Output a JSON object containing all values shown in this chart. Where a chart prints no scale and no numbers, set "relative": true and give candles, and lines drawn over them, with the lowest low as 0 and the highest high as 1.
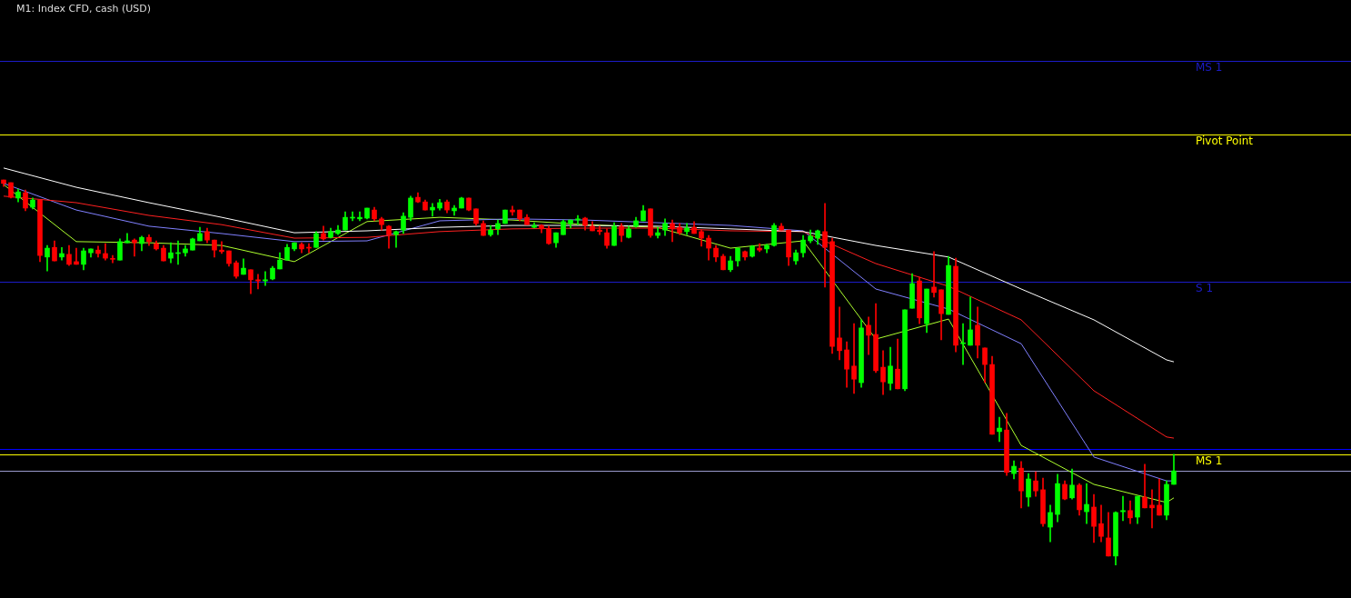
{
  "chart_data": {
    "type": "candlestick",
    "title": "M1: Index CFD, cash (USD)",
    "relative": true,
    "legend": false,
    "tick_labels": false,
    "categories": [
      null,
      null,
      null,
      null,
      null,
      null,
      null,
      null,
      null,
      null,
      null,
      null,
      null,
      null,
      null,
      null,
      null,
      null,
      null,
      null,
      null,
      null,
      null,
      null,
      null,
      null,
      null,
      null,
      null,
      null,
      null,
      null,
      null,
      null,
      null,
      null,
      null,
      null,
      null,
      null,
      null,
      null,
      null,
      null,
      null,
      null,
      null,
      null,
      null,
      null,
      null,
      null,
      null,
      null,
      null,
      null,
      null,
      null,
      null,
      null,
      null,
      null,
      null,
      null,
      null,
      null,
      null,
      null,
      null,
      null,
      null,
      null,
      null,
      null,
      null,
      null,
      null,
      null,
      null,
      null,
      null,
      null,
      null,
      null,
      null,
      null,
      null,
      null,
      null,
      null,
      null,
      null,
      null,
      null,
      null,
      null,
      null,
      null,
      null,
      null,
      null,
      null,
      null,
      null,
      null,
      null,
      null,
      null,
      null,
      null,
      null,
      null,
      null,
      null,
      null,
      null,
      null,
      null,
      null,
      null,
      null,
      null,
      null,
      null,
      null,
      null,
      null,
      null,
      null,
      null,
      null,
      null,
      null,
      null,
      null,
      null,
      null,
      null,
      null,
      null,
      null,
      null,
      null,
      null,
      null,
      null,
      null,
      null,
      null,
      null,
      null,
      null,
      null,
      null,
      null,
      null,
      null,
      null,
      null,
      null,
      null,
      null
    ],
    "ohlc": [
      [
        1,
        1,
        0.983,
        0.991
      ],
      [
        0.993,
        0.993,
        0.953,
        0.955
      ],
      [
        0.953,
        0.976,
        0.943,
        0.969
      ],
      [
        0.967,
        0.974,
        0.92,
        0.927
      ],
      [
        0.929,
        0.953,
        0.925,
        0.948
      ],
      [
        0.948,
        0.948,
        0.788,
        0.804
      ],
      [
        0.8,
        0.83,
        0.764,
        0.823
      ],
      [
        0.825,
        0.842,
        0.79,
        0.79
      ],
      [
        0.8,
        0.825,
        0.792,
        0.809
      ],
      [
        0.807,
        0.83,
        0.778,
        0.781
      ],
      [
        0.788,
        0.823,
        0.781,
        0.781
      ],
      [
        0.781,
        0.823,
        0.767,
        0.816
      ],
      [
        0.811,
        0.821,
        0.8,
        0.821
      ],
      [
        0.818,
        0.828,
        0.8,
        0.809
      ],
      [
        0.809,
        0.835,
        0.792,
        0.797
      ],
      [
        0.795,
        0.804,
        0.785,
        0.794
      ],
      [
        0.792,
        0.847,
        0.792,
        0.84
      ],
      [
        0.837,
        0.861,
        0.837,
        0.842
      ],
      [
        0.844,
        0.847,
        0.802,
        0.837
      ],
      [
        0.835,
        0.854,
        0.816,
        0.851
      ],
      [
        0.851,
        0.858,
        0.83,
        0.84
      ],
      [
        0.835,
        0.842,
        0.818,
        0.821
      ],
      [
        0.823,
        0.83,
        0.79,
        0.79
      ],
      [
        0.797,
        0.837,
        0.785,
        0.811
      ],
      [
        0.809,
        0.842,
        0.781,
        0.809
      ],
      [
        0.811,
        0.83,
        0.802,
        0.821
      ],
      [
        0.818,
        0.849,
        0.818,
        0.847
      ],
      [
        0.842,
        0.877,
        0.842,
        0.861
      ],
      [
        0.866,
        0.875,
        0.837,
        0.844
      ],
      [
        0.844,
        0.844,
        0.8,
        0.818
      ],
      [
        0.818,
        0.84,
        0.809,
        0.814
      ],
      [
        0.816,
        0.816,
        0.776,
        0.783
      ],
      [
        0.785,
        0.79,
        0.745,
        0.75
      ],
      [
        0.755,
        0.795,
        0.755,
        0.771
      ],
      [
        0.767,
        0.767,
        0.705,
        0.741
      ],
      [
        0.741,
        0.755,
        0.717,
        0.738
      ],
      [
        0.738,
        0.762,
        0.726,
        0.741
      ],
      [
        0.743,
        0.776,
        0.741,
        0.771
      ],
      [
        0.769,
        0.811,
        0.769,
        0.792
      ],
      [
        0.792,
        0.833,
        0.792,
        0.825
      ],
      [
        0.821,
        0.837,
        0.816,
        0.837
      ],
      [
        0.833,
        0.837,
        0.811,
        0.821
      ],
      [
        0.825,
        0.835,
        0.811,
        0.823
      ],
      [
        0.825,
        0.866,
        0.825,
        0.861
      ],
      [
        0.861,
        0.88,
        0.844,
        0.847
      ],
      [
        0.851,
        0.875,
        0.849,
        0.866
      ],
      [
        0.861,
        0.882,
        0.858,
        0.87
      ],
      [
        0.87,
        0.917,
        0.87,
        0.903
      ],
      [
        0.901,
        0.917,
        0.894,
        0.903
      ],
      [
        0.899,
        0.917,
        0.894,
        0.903
      ],
      [
        0.901,
        0.927,
        0.899,
        0.927
      ],
      [
        0.922,
        0.929,
        0.894,
        0.899
      ],
      [
        0.899,
        0.903,
        0.87,
        0.884
      ],
      [
        0.88,
        0.882,
        0.823,
        0.858
      ],
      [
        0.858,
        0.868,
        0.825,
        0.866
      ],
      [
        0.87,
        0.915,
        0.861,
        0.906
      ],
      [
        0.903,
        0.958,
        0.894,
        0.953
      ],
      [
        0.955,
        0.967,
        0.941,
        0.943
      ],
      [
        0.943,
        0.948,
        0.922,
        0.922
      ],
      [
        0.922,
        0.939,
        0.906,
        0.929
      ],
      [
        0.927,
        0.95,
        0.922,
        0.941
      ],
      [
        0.943,
        0.948,
        0.915,
        0.922
      ],
      [
        0.92,
        0.934,
        0.908,
        0.927
      ],
      [
        0.927,
        0.955,
        0.927,
        0.953
      ],
      [
        0.953,
        0.953,
        0.92,
        0.922
      ],
      [
        0.925,
        0.925,
        0.882,
        0.887
      ],
      [
        0.887,
        0.894,
        0.856,
        0.856
      ],
      [
        0.858,
        0.882,
        0.854,
        0.87
      ],
      [
        0.873,
        0.896,
        0.858,
        0.887
      ],
      [
        0.887,
        0.922,
        0.887,
        0.922
      ],
      [
        0.922,
        0.932,
        0.908,
        0.917
      ],
      [
        0.922,
        0.922,
        0.894,
        0.899
      ],
      [
        0.903,
        0.91,
        0.884,
        0.884
      ],
      [
        0.877,
        0.889,
        0.875,
        0.882
      ],
      [
        0.882,
        0.884,
        0.863,
        0.873
      ],
      [
        0.873,
        0.88,
        0.833,
        0.835
      ],
      [
        0.837,
        0.863,
        0.825,
        0.863
      ],
      [
        0.858,
        0.896,
        0.858,
        0.892
      ],
      [
        0.887,
        0.896,
        0.875,
        0.896
      ],
      [
        0.896,
        0.908,
        0.884,
        0.899
      ],
      [
        0.901,
        0.903,
        0.87,
        0.882
      ],
      [
        0.88,
        0.892,
        0.868,
        0.868
      ],
      [
        0.87,
        0.88,
        0.858,
        0.866
      ],
      [
        0.863,
        0.873,
        0.823,
        0.83
      ],
      [
        0.83,
        0.889,
        0.83,
        0.88
      ],
      [
        0.88,
        0.887,
        0.84,
        0.856
      ],
      [
        0.851,
        0.88,
        0.849,
        0.873
      ],
      [
        0.88,
        0.903,
        0.877,
        0.894
      ],
      [
        0.894,
        0.934,
        0.894,
        0.92
      ],
      [
        0.925,
        0.925,
        0.851,
        0.856
      ],
      [
        0.856,
        0.877,
        0.849,
        0.863
      ],
      [
        0.87,
        0.899,
        0.856,
        0.887
      ],
      [
        0.887,
        0.896,
        0.84,
        0.873
      ],
      [
        0.877,
        0.887,
        0.858,
        0.863
      ],
      [
        0.866,
        0.887,
        0.858,
        0.875
      ],
      [
        0.877,
        0.892,
        0.861,
        0.861
      ],
      [
        0.866,
        0.87,
        0.828,
        0.849
      ],
      [
        0.849,
        0.856,
        0.792,
        0.823
      ],
      [
        0.823,
        0.83,
        0.788,
        0.8
      ],
      [
        0.802,
        0.807,
        0.767,
        0.767
      ],
      [
        0.767,
        0.802,
        0.762,
        0.79
      ],
      [
        0.79,
        0.823,
        0.776,
        0.823
      ],
      [
        0.814,
        0.816,
        0.792,
        0.8
      ],
      [
        0.802,
        0.83,
        0.8,
        0.828
      ],
      [
        0.823,
        0.835,
        0.814,
        0.818
      ],
      [
        0.821,
        0.833,
        0.811,
        0.83
      ],
      [
        0.83,
        0.887,
        0.828,
        0.882
      ],
      [
        0.88,
        0.887,
        0.87,
        0.87
      ],
      [
        0.87,
        0.87,
        0.778,
        0.8
      ],
      [
        0.79,
        0.818,
        0.781,
        0.811
      ],
      [
        0.811,
        0.856,
        0.8,
        0.844
      ],
      [
        0.842,
        0.87,
        0.837,
        0.854
      ],
      [
        0.849,
        0.87,
        0.833,
        0.868
      ],
      [
        0.866,
        0.939,
        0.722,
        0.825
      ],
      [
        0.84,
        0.849,
        0.55,
        0.568
      ],
      [
        0.59,
        0.67,
        0.533,
        0.557
      ],
      [
        0.559,
        0.58,
        0.462,
        0.509
      ],
      [
        0.517,
        0.627,
        0.446,
        0.483
      ],
      [
        0.474,
        0.637,
        0.462,
        0.616
      ],
      [
        0.623,
        0.644,
        0.547,
        0.597
      ],
      [
        0.599,
        0.679,
        0.5,
        0.505
      ],
      [
        0.514,
        0.557,
        0.443,
        0.476
      ],
      [
        0.472,
        0.566,
        0.455,
        0.517
      ],
      [
        0.509,
        0.587,
        0.458,
        0.458
      ],
      [
        0.458,
        0.663,
        0.453,
        0.663
      ],
      [
        0.667,
        0.757,
        0.667,
        0.731
      ],
      [
        0.738,
        0.748,
        0.627,
        0.642
      ],
      [
        0.627,
        0.717,
        0.604,
        0.717
      ],
      [
        0.722,
        0.814,
        0.696,
        0.708
      ],
      [
        0.715,
        0.715,
        0.585,
        0.653
      ],
      [
        0.651,
        0.802,
        0.651,
        0.778
      ],
      [
        0.776,
        0.797,
        0.554,
        0.571
      ],
      [
        0.575,
        0.627,
        0.521,
        0.575
      ],
      [
        0.571,
        0.696,
        0.571,
        0.611
      ],
      [
        0.623,
        0.67,
        0.538,
        0.571
      ],
      [
        0.564,
        0.564,
        0.474,
        0.521
      ],
      [
        0.521,
        0.542,
        0.34,
        0.34
      ],
      [
        0.347,
        0.384,
        0.321,
        0.356
      ],
      [
        0.351,
        0.394,
        0.233,
        0.241
      ],
      [
        0.238,
        0.271,
        0.224,
        0.257
      ],
      [
        0.252,
        0.269,
        0.149,
        0.193
      ],
      [
        0.177,
        0.238,
        0.153,
        0.224
      ],
      [
        0.219,
        0.243,
        0.179,
        0.193
      ],
      [
        0.196,
        0.226,
        0.101,
        0.108
      ],
      [
        0.099,
        0.156,
        0.061,
        0.137
      ],
      [
        0.132,
        0.236,
        0.113,
        0.212
      ],
      [
        0.21,
        0.219,
        0.17,
        0.172
      ],
      [
        0.175,
        0.25,
        0.172,
        0.208
      ],
      [
        0.208,
        0.212,
        0.13,
        0.144
      ],
      [
        0.139,
        0.212,
        0.108,
        0.158
      ],
      [
        0.151,
        0.184,
        0.059,
        0.101
      ],
      [
        0.108,
        0.156,
        0.061,
        0.075
      ],
      [
        0.071,
        0.137,
        0.024,
        0.024
      ],
      [
        0.024,
        0.139,
        0,
        0.137
      ],
      [
        0.139,
        0.179,
        0.116,
        0.142
      ],
      [
        0.142,
        0.167,
        0.108,
        0.123
      ],
      [
        0.125,
        0.179,
        0.108,
        0.179
      ],
      [
        0.177,
        0.262,
        0.149,
        0.149
      ],
      [
        0.156,
        0.196,
        0.097,
        0.149
      ],
      [
        0.156,
        0.224,
        0.13,
        0.13
      ],
      [
        0.13,
        0.219,
        0.118,
        0.21
      ],
      [
        0.21,
        0.288,
        0.21,
        0.245
      ]
    ],
    "series": [
      {
        "type": "line",
        "color": "#ffffff",
        "values": [
          1.031,
          null,
          null,
          null,
          null,
          null,
          null,
          null,
          null,
          null,
          0.981,
          null,
          null,
          null,
          null,
          null,
          null,
          null,
          null,
          null,
          0.941,
          null,
          null,
          null,
          null,
          null,
          null,
          null,
          null,
          null,
          0.903,
          null,
          null,
          null,
          null,
          null,
          null,
          null,
          null,
          null,
          0.863,
          null,
          null,
          null,
          null,
          null,
          null,
          null,
          null,
          null,
          0.868,
          null,
          null,
          null,
          null,
          null,
          null,
          null,
          null,
          null,
          0.877,
          null,
          null,
          null,
          null,
          null,
          null,
          null,
          null,
          null,
          0.882,
          null,
          null,
          null,
          null,
          null,
          null,
          null,
          null,
          null,
          0.882,
          null,
          null,
          null,
          null,
          null,
          null,
          null,
          null,
          null,
          0.88,
          null,
          null,
          null,
          null,
          null,
          null,
          null,
          null,
          null,
          0.873,
          null,
          null,
          null,
          null,
          null,
          null,
          null,
          null,
          null,
          0.866,
          null,
          null,
          null,
          null,
          null,
          null,
          null,
          null,
          null,
          0.83,
          null,
          null,
          null,
          null,
          null,
          null,
          null,
          null,
          null,
          0.8,
          null,
          null,
          null,
          null,
          null,
          null,
          null,
          null,
          null,
          0.717,
          null,
          null,
          null,
          null,
          null,
          null,
          null,
          null,
          null,
          0.637,
          null,
          null,
          null,
          null,
          null,
          null,
          null,
          null,
          null,
          0.533,
          0.528
        ]
      },
      {
        "type": "line",
        "color": "#ff2020",
        "values": [
          0.958,
          null,
          null,
          null,
          null,
          null,
          null,
          null,
          null,
          null,
          0.941,
          null,
          null,
          null,
          null,
          null,
          null,
          null,
          null,
          null,
          0.908,
          null,
          null,
          null,
          null,
          null,
          null,
          null,
          null,
          null,
          0.884,
          null,
          null,
          null,
          null,
          null,
          null,
          null,
          null,
          null,
          0.849,
          null,
          null,
          null,
          null,
          null,
          null,
          null,
          null,
          null,
          0.851,
          null,
          null,
          null,
          null,
          null,
          null,
          null,
          null,
          null,
          0.866,
          null,
          null,
          null,
          null,
          null,
          null,
          null,
          null,
          null,
          0.873,
          null,
          null,
          null,
          null,
          null,
          null,
          null,
          null,
          null,
          0.875,
          null,
          null,
          null,
          null,
          null,
          null,
          null,
          null,
          null,
          0.875,
          null,
          null,
          null,
          null,
          null,
          null,
          null,
          null,
          null,
          0.868,
          null,
          null,
          null,
          null,
          null,
          null,
          null,
          null,
          null,
          0.866,
          null,
          null,
          null,
          null,
          null,
          null,
          null,
          null,
          null,
          0.783,
          null,
          null,
          null,
          null,
          null,
          null,
          null,
          null,
          null,
          0.724,
          null,
          null,
          null,
          null,
          null,
          null,
          null,
          null,
          null,
          0.637,
          null,
          null,
          null,
          null,
          null,
          null,
          null,
          null,
          null,
          0.453,
          null,
          null,
          null,
          null,
          null,
          null,
          null,
          null,
          null,
          0.333,
          0.33
        ]
      },
      {
        "type": "line",
        "color": "#8080ff",
        "values": [
          0.991,
          null,
          null,
          null,
          null,
          null,
          null,
          null,
          null,
          null,
          0.922,
          null,
          null,
          null,
          null,
          null,
          null,
          null,
          null,
          null,
          0.88,
          null,
          null,
          null,
          null,
          null,
          null,
          null,
          null,
          null,
          0.861,
          null,
          null,
          null,
          null,
          null,
          null,
          null,
          null,
          null,
          0.84,
          null,
          null,
          null,
          null,
          null,
          null,
          null,
          null,
          null,
          0.842,
          null,
          null,
          null,
          null,
          null,
          null,
          null,
          null,
          null,
          0.894,
          null,
          null,
          null,
          null,
          null,
          null,
          null,
          null,
          null,
          0.899,
          null,
          null,
          null,
          null,
          null,
          null,
          null,
          null,
          null,
          0.896,
          null,
          null,
          null,
          null,
          null,
          null,
          null,
          null,
          null,
          0.889,
          null,
          null,
          null,
          null,
          null,
          null,
          null,
          null,
          null,
          0.882,
          null,
          null,
          null,
          null,
          null,
          null,
          null,
          null,
          null,
          0.868,
          null,
          null,
          null,
          null,
          null,
          null,
          null,
          null,
          null,
          0.717,
          null,
          null,
          null,
          null,
          null,
          null,
          null,
          null,
          null,
          0.665,
          null,
          null,
          null,
          null,
          null,
          null,
          null,
          null,
          null,
          0.575,
          null,
          null,
          null,
          null,
          null,
          null,
          null,
          null,
          null,
          0.281,
          null,
          null,
          null,
          null,
          null,
          null,
          null,
          null,
          null,
          0.219,
          0.219
        ]
      },
      {
        "type": "line",
        "color": "#adff2f",
        "values": [
          0.988,
          null,
          null,
          null,
          null,
          null,
          null,
          null,
          null,
          null,
          0.84,
          null,
          null,
          null,
          null,
          null,
          null,
          null,
          null,
          null,
          0.837,
          null,
          null,
          null,
          null,
          null,
          null,
          null,
          null,
          null,
          0.83,
          null,
          null,
          null,
          null,
          null,
          null,
          null,
          null,
          null,
          0.788,
          null,
          null,
          null,
          null,
          null,
          null,
          null,
          null,
          null,
          0.892,
          null,
          null,
          null,
          null,
          null,
          null,
          null,
          null,
          null,
          0.903,
          null,
          null,
          null,
          null,
          null,
          null,
          null,
          null,
          null,
          0.896,
          null,
          null,
          null,
          null,
          null,
          null,
          null,
          null,
          null,
          0.884,
          null,
          null,
          null,
          null,
          null,
          null,
          null,
          null,
          null,
          0.877,
          null,
          null,
          null,
          null,
          null,
          null,
          null,
          null,
          null,
          0.823,
          null,
          null,
          null,
          null,
          null,
          null,
          null,
          null,
          null,
          0.842,
          null,
          null,
          null,
          null,
          null,
          null,
          null,
          null,
          null,
          0.587,
          null,
          null,
          null,
          null,
          null,
          null,
          null,
          null,
          null,
          0.639,
          null,
          null,
          null,
          null,
          null,
          null,
          null,
          null,
          null,
          0.311,
          null,
          null,
          null,
          null,
          null,
          null,
          null,
          null,
          null,
          0.21,
          null,
          null,
          null,
          null,
          null,
          null,
          null,
          null,
          null,
          0.163,
          0.175
        ]
      }
    ],
    "ref_lines": [
      {
        "axis": "y",
        "value": 1.309,
        "label": "MS 1",
        "color": "#1c1cc8"
      },
      {
        "axis": "y",
        "value": 1.118,
        "label": "Pivot Point",
        "color": "#ffff00"
      },
      {
        "axis": "y",
        "value": 0.736,
        "label": "S 1",
        "color": "#1c1cc8"
      },
      {
        "axis": "y",
        "value": 0.302,
        "color": "#0000ff"
      },
      {
        "axis": "y",
        "value": 0.288,
        "label": "MS 1",
        "color": "#ffff00"
      },
      {
        "axis": "y",
        "value": 0.245,
        "color": "#9a9acd"
      }
    ]
  }
}
